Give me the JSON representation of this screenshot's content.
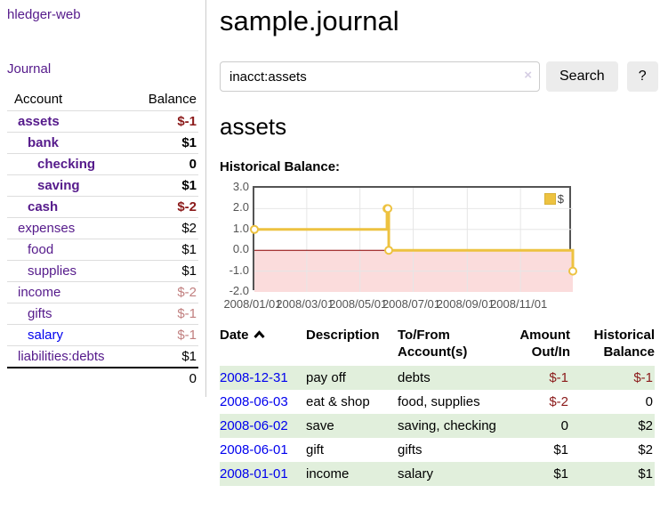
{
  "colors": {
    "link_purple": "#551A8B",
    "link_blue": "#0000EE",
    "negative_strong": "#8B1A1A",
    "negative_soft": "#C17F7F",
    "row_green": "#E1EFDC",
    "chart_line": "#EDC240",
    "chart_negative_fill": "#FBDCDC",
    "chart_zero_line": "#8B0000",
    "chart_border": "#545454",
    "button_bg": "#ECECEC"
  },
  "sidebar": {
    "brand": "hledger-web",
    "journal_link": "Journal",
    "accounts": {
      "headers": {
        "account": "Account",
        "balance": "Balance"
      },
      "rows": [
        {
          "name": "assets",
          "balance": "$-1"
        },
        {
          "name": "bank",
          "balance": "$1"
        },
        {
          "name": "checking",
          "balance": "0"
        },
        {
          "name": "saving",
          "balance": "$1"
        },
        {
          "name": "cash",
          "balance": "$-2"
        },
        {
          "name": "expenses",
          "balance": "$2"
        },
        {
          "name": "food",
          "balance": "$1"
        },
        {
          "name": "supplies",
          "balance": "$1"
        },
        {
          "name": "income",
          "balance": "$-2"
        },
        {
          "name": "gifts",
          "balance": "$-1"
        },
        {
          "name": "salary",
          "balance": "$-1"
        },
        {
          "name": "liabilities:debts",
          "balance": "$1"
        }
      ],
      "total": "0"
    }
  },
  "main": {
    "title": "sample.journal",
    "search": {
      "value": "inacct:assets",
      "clear_icon": "×",
      "button_label": "Search",
      "help_label": "?"
    },
    "account_heading": "assets"
  },
  "chart_data": {
    "type": "line",
    "title": "Historical Balance:",
    "step": true,
    "xlim": [
      "2008-01-01",
      "2008-12-31"
    ],
    "ylim": [
      -2,
      3
    ],
    "grid": true,
    "legend_position": "top-right",
    "series": [
      {
        "name": "$",
        "color": "#EDC240",
        "points": [
          [
            "2008-01-01",
            1
          ],
          [
            "2008-06-01",
            2
          ],
          [
            "2008-06-02",
            2
          ],
          [
            "2008-06-03",
            0
          ],
          [
            "2008-12-31",
            -1
          ]
        ]
      }
    ],
    "y_ticks": [
      "3.0",
      "2.0",
      "1.0",
      "0.0",
      "-1.0",
      "-2.0"
    ],
    "x_ticks": [
      {
        "label": "2008/01/01",
        "date": "2008-01-01"
      },
      {
        "label": "2008/03/01",
        "date": "2008-03-01"
      },
      {
        "label": "2008/05/01",
        "date": "2008-05-01"
      },
      {
        "label": "2008/07/01",
        "date": "2008-07-01"
      },
      {
        "label": "2008/09/01",
        "date": "2008-09-01"
      },
      {
        "label": "2008/11/01",
        "date": "2008-11-01"
      }
    ]
  },
  "register": {
    "headers": {
      "date": "Date",
      "description": "Description",
      "accounts": "To/From Account(s)",
      "amount": "Amount Out/In",
      "balance": "Historical Balance"
    },
    "rows": [
      {
        "date": "2008-12-31",
        "description": "pay off",
        "accounts": "debts",
        "amount": "$-1",
        "balance": "$-1"
      },
      {
        "date": "2008-06-03",
        "description": "eat & shop",
        "accounts": "food, supplies",
        "amount": "$-2",
        "balance": "0"
      },
      {
        "date": "2008-06-02",
        "description": "save",
        "accounts": "saving, checking",
        "amount": "0",
        "balance": "$2"
      },
      {
        "date": "2008-06-01",
        "description": "gift",
        "accounts": "gifts",
        "amount": "$1",
        "balance": "$2"
      },
      {
        "date": "2008-01-01",
        "description": "income",
        "accounts": "salary",
        "amount": "$1",
        "balance": "$1"
      }
    ]
  }
}
